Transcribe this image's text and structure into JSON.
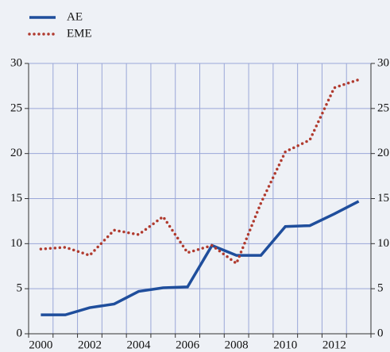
{
  "chart_data": {
    "type": "line",
    "categories": [
      "2000",
      null,
      "2002",
      null,
      "2004",
      null,
      "2006",
      null,
      "2008",
      null,
      "2010",
      null,
      "2012",
      null
    ],
    "series": [
      {
        "name": "AE",
        "color": "#1f4e9c",
        "values": [
          2.1,
          2.1,
          2.9,
          3.3,
          4.7,
          5.1,
          5.2,
          9.8,
          8.7,
          8.7,
          11.9,
          12.0,
          13.3,
          14.7
        ]
      },
      {
        "name": "EME",
        "color": "#b03a2e",
        "values": [
          9.4,
          9.6,
          8.7,
          11.5,
          11.0,
          13.0,
          9.0,
          9.8,
          7.8,
          14.5,
          20.2,
          21.5,
          27.3,
          28.2
        ]
      }
    ],
    "ylim": [
      0,
      30
    ],
    "yticks": [
      0,
      5,
      10,
      15,
      20,
      25,
      30
    ],
    "y2lim": [
      0,
      30
    ],
    "y2ticks": [
      0,
      5,
      10,
      15,
      20,
      25,
      30
    ],
    "grid": true
  }
}
